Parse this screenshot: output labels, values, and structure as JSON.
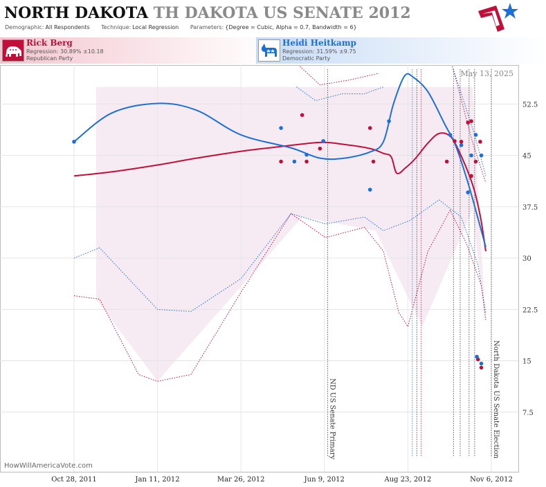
{
  "header": {
    "title_main": "NORTH DAKOTA",
    "title_ghost": "TH DAKOTA US SENATE 2012",
    "params": [
      {
        "label": "Demographic:",
        "value": "All Respondents"
      },
      {
        "label": "Technique:",
        "value": "Local Regression"
      },
      {
        "label": "Parameters:",
        "value": "{Degree = Cubic, Alpha = 0.7, Bandwidth = 6}"
      }
    ]
  },
  "candidates": {
    "rep": {
      "name": "Rick Berg",
      "regression": "Regression: 30.89% ±10.18",
      "party": "Republican Party",
      "color": "#c0103a",
      "icon": "elephant-icon"
    },
    "dem": {
      "name": "Heidi Heitkamp",
      "regression": "Regression: 31.59% ±9.75",
      "party": "Democratic Party",
      "color": "#1c6fd6",
      "icon": "donkey-icon"
    }
  },
  "watermark": "HowWillAmericaVote.com",
  "chart_data": {
    "type": "line",
    "date_label": "May 13, 2025",
    "x_ticks": [
      "Oct 28, 2011",
      "Jan 11, 2012",
      "Mar 26, 2012",
      "Jun 9, 2012",
      "Aug 23, 2012",
      "Nov 6, 2012"
    ],
    "y_ticks": [
      "7.5",
      "15",
      "22.5",
      "30",
      "37.5",
      "45",
      "52.5"
    ],
    "ylim": [
      0,
      58
    ],
    "event_annotations": [
      {
        "label": "ND US Senate Primary",
        "date": "2012-06-12"
      },
      {
        "label": "North Dakota US Senate Election",
        "date": "2012-11-06"
      }
    ],
    "series": [
      {
        "name": "Rick Berg",
        "color": "#c0103a",
        "regression": [
          [
            "2011-10-28",
            42.0
          ],
          [
            "2011-12-01",
            42.6
          ],
          [
            "2012-01-11",
            43.6
          ],
          [
            "2012-02-15",
            44.6
          ],
          [
            "2012-03-26",
            45.6
          ],
          [
            "2012-05-01",
            46.3
          ],
          [
            "2012-06-05",
            46.9
          ],
          [
            "2012-06-27",
            46.6
          ],
          [
            "2012-07-20",
            46.0
          ],
          [
            "2012-08-01",
            45.3
          ],
          [
            "2012-08-08",
            44.8
          ],
          [
            "2012-08-13",
            42.4
          ],
          [
            "2012-08-21",
            43.2
          ],
          [
            "2012-08-30",
            44.6
          ],
          [
            "2012-09-10",
            46.8
          ],
          [
            "2012-09-20",
            48.2
          ],
          [
            "2012-09-30",
            47.8
          ],
          [
            "2012-10-08",
            45.6
          ],
          [
            "2012-10-20",
            40.8
          ],
          [
            "2012-10-27",
            36.2
          ],
          [
            "2012-11-01",
            31.0
          ]
        ],
        "points": [
          [
            "2012-05-01",
            44.1
          ],
          [
            "2012-05-20",
            50.9
          ],
          [
            "2012-05-24",
            44.1
          ],
          [
            "2012-06-05",
            46.0
          ],
          [
            "2012-07-20",
            49.0
          ],
          [
            "2012-07-23",
            44.1
          ],
          [
            "2012-09-27",
            44.1
          ],
          [
            "2012-10-04",
            47.1
          ],
          [
            "2012-10-10",
            47.0
          ],
          [
            "2012-10-16",
            49.8
          ],
          [
            "2012-10-19",
            50.0
          ],
          [
            "2012-10-19",
            42.0
          ],
          [
            "2012-10-23",
            44.1
          ],
          [
            "2012-10-27",
            47.0
          ],
          [
            "2012-10-25",
            15.2
          ],
          [
            "2012-10-28",
            14.0
          ]
        ]
      },
      {
        "name": "Heidi Heitkamp",
        "color": "#1c6fd6",
        "regression": [
          [
            "2011-10-28",
            47.0
          ],
          [
            "2011-12-01",
            51.2
          ],
          [
            "2012-01-11",
            52.6
          ],
          [
            "2012-02-15",
            51.6
          ],
          [
            "2012-03-26",
            48.0
          ],
          [
            "2012-05-10",
            46.1
          ],
          [
            "2012-06-05",
            44.6
          ],
          [
            "2012-06-27",
            44.6
          ],
          [
            "2012-07-20",
            45.5
          ],
          [
            "2012-08-01",
            47.0
          ],
          [
            "2012-08-10",
            52.5
          ],
          [
            "2012-08-20",
            56.6
          ],
          [
            "2012-08-28",
            56.4
          ],
          [
            "2012-09-10",
            54.3
          ],
          [
            "2012-09-25",
            49.6
          ],
          [
            "2012-10-05",
            46.4
          ],
          [
            "2012-10-16",
            41.0
          ],
          [
            "2012-10-26",
            35.2
          ],
          [
            "2012-11-01",
            31.6
          ]
        ],
        "points": [
          [
            "2011-10-28",
            47.0
          ],
          [
            "2012-05-01",
            49.0
          ],
          [
            "2012-05-13",
            44.1
          ],
          [
            "2012-05-24",
            45.1
          ],
          [
            "2012-06-08",
            47.1
          ],
          [
            "2012-07-20",
            40.0
          ],
          [
            "2012-08-06",
            50.0
          ],
          [
            "2012-09-30",
            48.0
          ],
          [
            "2012-10-10",
            46.5
          ],
          [
            "2012-10-16",
            39.6
          ],
          [
            "2012-10-19",
            45.0
          ],
          [
            "2012-10-23",
            48.0
          ],
          [
            "2012-10-28",
            45.0
          ],
          [
            "2012-10-24",
            15.6
          ],
          [
            "2012-10-28",
            14.6
          ]
        ]
      }
    ]
  }
}
